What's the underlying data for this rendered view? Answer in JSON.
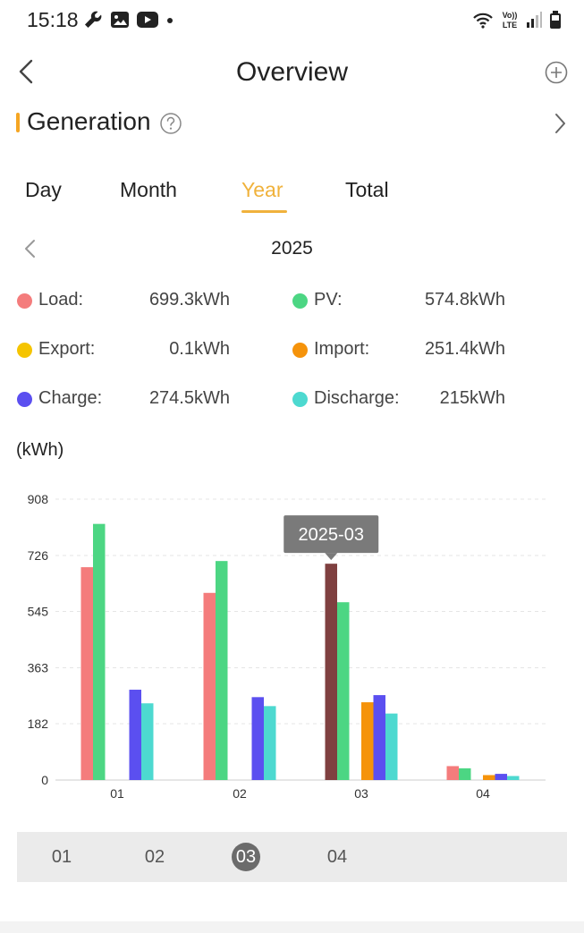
{
  "status_bar": {
    "time": "15:18",
    "left_icons": [
      "wrench-icon",
      "image-icon",
      "youtube-icon",
      "dot-icon"
    ],
    "right_icons": [
      "wifi-icon",
      "volte-icon",
      "signal-icon",
      "battery-icon"
    ],
    "volte_text": "Vo)) LTE"
  },
  "header": {
    "title": "Overview",
    "back_icon": "chevron-left-icon",
    "add_icon": "plus-circle-icon"
  },
  "section": {
    "title": "Generation",
    "help_icon": "question-circle-icon",
    "accent_color": "#f5a623"
  },
  "tabs": [
    {
      "label": "Day",
      "active": false
    },
    {
      "label": "Month",
      "active": false
    },
    {
      "label": "Year",
      "active": true
    },
    {
      "label": "Total",
      "active": false
    }
  ],
  "period": {
    "label": "2025"
  },
  "summary": [
    {
      "label": "Load:",
      "value": "699.3kWh",
      "color": "#f47c7c"
    },
    {
      "label": "PV:",
      "value": "574.8kWh",
      "color": "#4cd683"
    },
    {
      "label": "Export:",
      "value": "0.1kWh",
      "color": "#f5c400"
    },
    {
      "label": "Import:",
      "value": "251.4kWh",
      "color": "#f5930b"
    },
    {
      "label": "Charge:",
      "value": "274.5kWh",
      "color": "#5b4ff0"
    },
    {
      "label": "Discharge:",
      "value": "215kWh",
      "color": "#4dd9d0"
    }
  ],
  "unit": "(kWh)",
  "chart_data": {
    "type": "bar",
    "categories": [
      "01",
      "02",
      "03",
      "04"
    ],
    "y_ticks": [
      "908",
      "726",
      "545",
      "363",
      "182",
      "0"
    ],
    "ylim": [
      0,
      908
    ],
    "grid": true,
    "tooltip": "2025-03",
    "highlight_category": "03",
    "highlight_color": "#7f4040",
    "series": [
      {
        "name": "Load",
        "color": "#f47c7c",
        "values": [
          688,
          605,
          699.3,
          45
        ]
      },
      {
        "name": "PV",
        "color": "#4cd683",
        "values": [
          828,
          708,
          574.8,
          38
        ]
      },
      {
        "name": "Export",
        "color": "#f5c400",
        "values": [
          0,
          0,
          0.1,
          0
        ]
      },
      {
        "name": "Import",
        "color": "#f5930b",
        "values": [
          0,
          0,
          251.4,
          16
        ]
      },
      {
        "name": "Charge",
        "color": "#5b4ff0",
        "values": [
          292,
          268,
          274.5,
          20
        ]
      },
      {
        "name": "Discharge",
        "color": "#4dd9d0",
        "values": [
          248,
          239,
          215,
          13
        ]
      }
    ]
  },
  "month_selector": {
    "items": [
      "01",
      "02",
      "03",
      "04"
    ],
    "active": "03"
  }
}
